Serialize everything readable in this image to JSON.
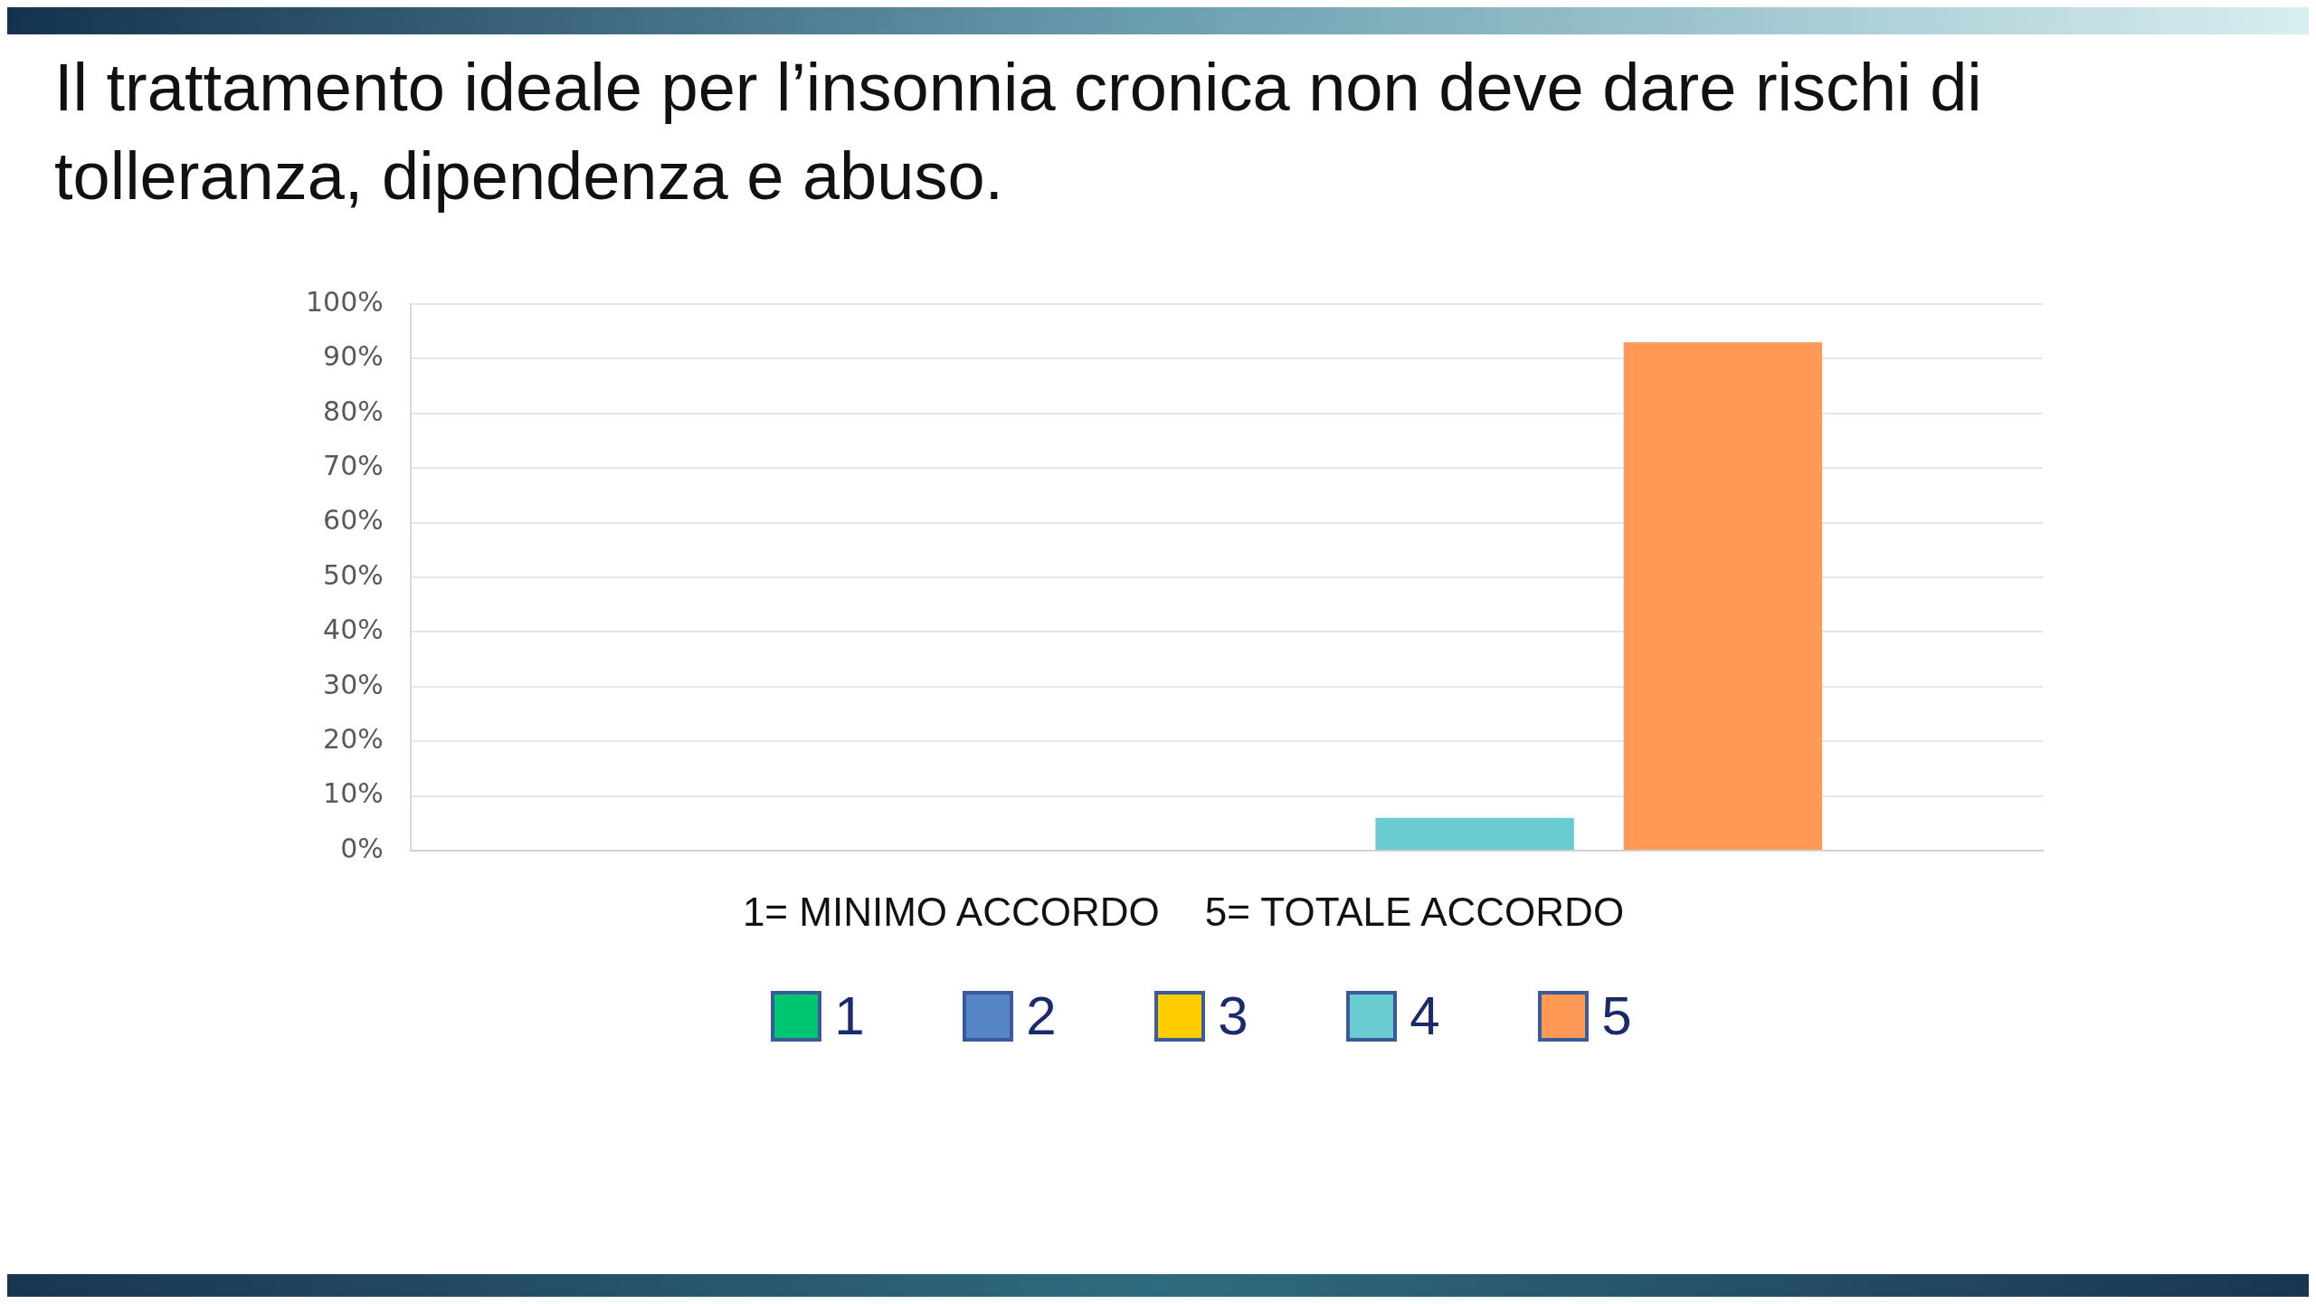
{
  "chart_data": {
    "type": "bar",
    "title": "Il trattamento ideale per l’insonnia cronica non deve dare rischi di tolleranza, dipendenza e abuso.",
    "categories": [
      null
    ],
    "series": [
      {
        "name": "1",
        "color": "#00c571",
        "values": [
          0
        ]
      },
      {
        "name": "2",
        "color": "#5585c5",
        "values": [
          0
        ]
      },
      {
        "name": "3",
        "color": "#ffcc00",
        "values": [
          0
        ]
      },
      {
        "name": "4",
        "color": "#6acbd0",
        "values": [
          6
        ]
      },
      {
        "name": "5",
        "color": "#ff9955",
        "values": [
          93
        ]
      }
    ],
    "ylim": [
      0,
      100
    ],
    "yticks": [
      {
        "value": 0,
        "label": "0%"
      },
      {
        "value": 10,
        "label": "10%"
      },
      {
        "value": 20,
        "label": "20%"
      },
      {
        "value": 30,
        "label": "30%"
      },
      {
        "value": 40,
        "label": "40%"
      },
      {
        "value": 50,
        "label": "50%"
      },
      {
        "value": 60,
        "label": "60%"
      },
      {
        "value": 70,
        "label": "70%"
      },
      {
        "value": 80,
        "label": "80%"
      },
      {
        "value": 90,
        "label": "90%"
      },
      {
        "value": 100,
        "label": "100%"
      }
    ],
    "grid": "y",
    "legend": "bottom",
    "annotations": [
      "1= MINIMO ACCORDO",
      "5= TOTALE ACCORDO"
    ]
  }
}
